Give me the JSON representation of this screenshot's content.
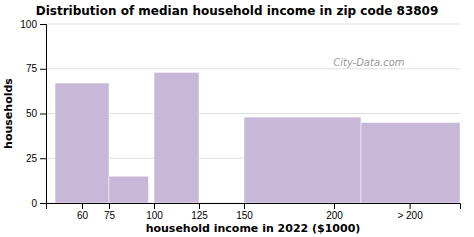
{
  "chart_data": {
    "type": "histogram",
    "title": "Distribution of median household income in zip code 83809",
    "xlabel": "household income in 2022 ($1000)",
    "ylabel": "households",
    "x_start": [
      45,
      75,
      100,
      150,
      215
    ],
    "x_end": [
      75,
      97,
      125,
      215,
      270
    ],
    "values": [
      67,
      15,
      73,
      48,
      45
    ],
    "color": "#c8b8d8",
    "xlim": [
      40,
      270
    ],
    "xticks": [
      60,
      75,
      100,
      125,
      150,
      200,
      {
        "value": 242,
        "label": "> 200"
      }
    ],
    "ylim": [
      0,
      100
    ],
    "yticks": [
      0,
      25,
      50,
      75,
      100
    ],
    "grid": true,
    "annotations": [
      "City-Data.com"
    ]
  }
}
